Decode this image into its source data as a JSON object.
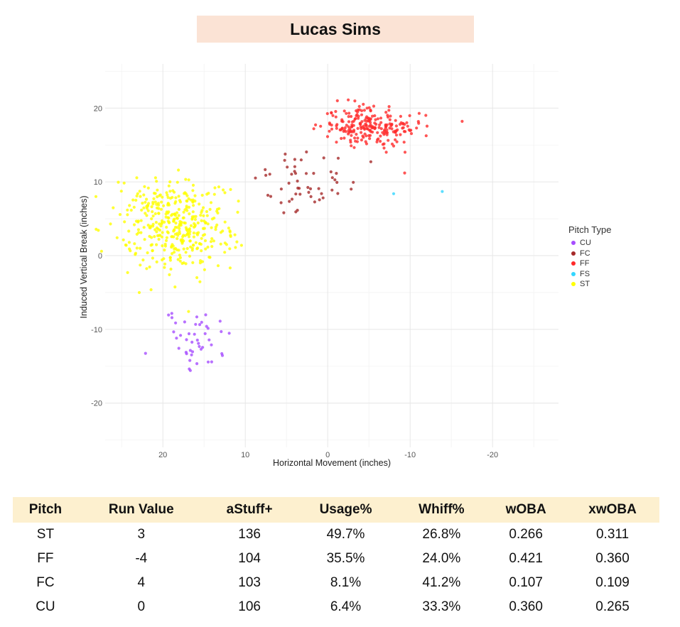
{
  "header": {
    "title": "Lucas Sims"
  },
  "chart_data": {
    "type": "scatter",
    "xlabel": "Horizontal Movement (inches)",
    "ylabel": "Induced Vertical Break (inches)",
    "xlim": [
      27,
      -28
    ],
    "ylim": [
      -26,
      26
    ],
    "x_ticks": [
      "20",
      "10",
      "0",
      "-10",
      "-20"
    ],
    "y_ticks": [
      "20",
      "10",
      "0",
      "-10",
      "-20"
    ],
    "grid": true,
    "legend_title": "Pitch Type",
    "legend_position": "right",
    "series": [
      {
        "name": "CU",
        "color": "#a64dff",
        "centroid": [
          16,
          -11.5
        ],
        "spread": [
          2.2,
          2.4
        ],
        "count": 45
      },
      {
        "name": "FC",
        "color": "#a52a2a",
        "centroid": [
          3,
          10
        ],
        "spread": [
          3.2,
          2.4
        ],
        "count": 52
      },
      {
        "name": "FF",
        "color": "#ff2a2a",
        "centroid": [
          -5,
          17.5
        ],
        "spread": [
          2.8,
          1.5
        ],
        "count": 230
      },
      {
        "name": "FS",
        "color": "#33d6ff",
        "points": [
          [
            -8,
            8.4
          ],
          [
            -13.9,
            8.7
          ]
        ]
      },
      {
        "name": "ST",
        "color": "#ffff00",
        "centroid": [
          18.5,
          4
        ],
        "spread": [
          3.2,
          3.0
        ],
        "count": 400
      }
    ]
  },
  "table": {
    "headers": [
      "Pitch",
      "Run Value",
      "aStuff+",
      "Usage%",
      "Whiff%",
      "wOBA",
      "xwOBA"
    ],
    "rows": [
      [
        "ST",
        "3",
        "136",
        "49.7%",
        "26.8%",
        "0.266",
        "0.311"
      ],
      [
        "FF",
        "-4",
        "104",
        "35.5%",
        "24.0%",
        "0.421",
        "0.360"
      ],
      [
        "FC",
        "4",
        "103",
        "8.1%",
        "41.2%",
        "0.107",
        "0.109"
      ],
      [
        "CU",
        "0",
        "106",
        "6.4%",
        "33.3%",
        "0.360",
        "0.265"
      ]
    ]
  }
}
